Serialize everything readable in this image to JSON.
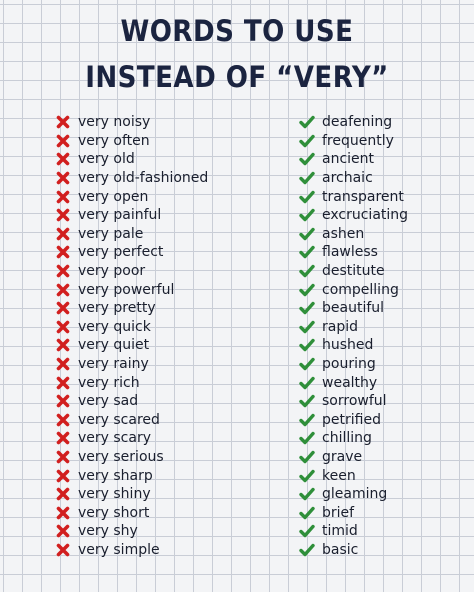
{
  "title": {
    "line1": "WORDS TO USE",
    "line2": "INSTEAD OF “VERY”"
  },
  "colors": {
    "title": "#1b2440",
    "cross": "#d11f1f",
    "check": "#2f8f3a",
    "text": "#1a1f2e",
    "grid": "#c9cdd6"
  },
  "icons": {
    "bad": "cross-icon",
    "good": "check-icon"
  },
  "pairs": [
    {
      "very": "very noisy",
      "better": "deafening"
    },
    {
      "very": "very often",
      "better": "frequently"
    },
    {
      "very": "very old",
      "better": "ancient"
    },
    {
      "very": "very old-fashioned",
      "better": "archaic"
    },
    {
      "very": "very open",
      "better": "transparent"
    },
    {
      "very": "very painful",
      "better": "excruciating"
    },
    {
      "very": "very pale",
      "better": "ashen"
    },
    {
      "very": "very perfect",
      "better": "flawless"
    },
    {
      "very": "very poor",
      "better": "destitute"
    },
    {
      "very": "very powerful",
      "better": "compelling"
    },
    {
      "very": "very pretty",
      "better": "beautiful"
    },
    {
      "very": "very quick",
      "better": "rapid"
    },
    {
      "very": "very quiet",
      "better": "hushed"
    },
    {
      "very": "very rainy",
      "better": "pouring"
    },
    {
      "very": "very rich",
      "better": "wealthy"
    },
    {
      "very": "very sad",
      "better": "sorrowful"
    },
    {
      "very": "very scared",
      "better": "petrified"
    },
    {
      "very": "very scary",
      "better": "chilling"
    },
    {
      "very": "very serious",
      "better": "grave"
    },
    {
      "very": "very sharp",
      "better": "keen"
    },
    {
      "very": "very shiny",
      "better": "gleaming"
    },
    {
      "very": "very short",
      "better": "brief"
    },
    {
      "very": "very shy",
      "better": "timid"
    },
    {
      "very": "very simple",
      "better": "basic"
    }
  ]
}
